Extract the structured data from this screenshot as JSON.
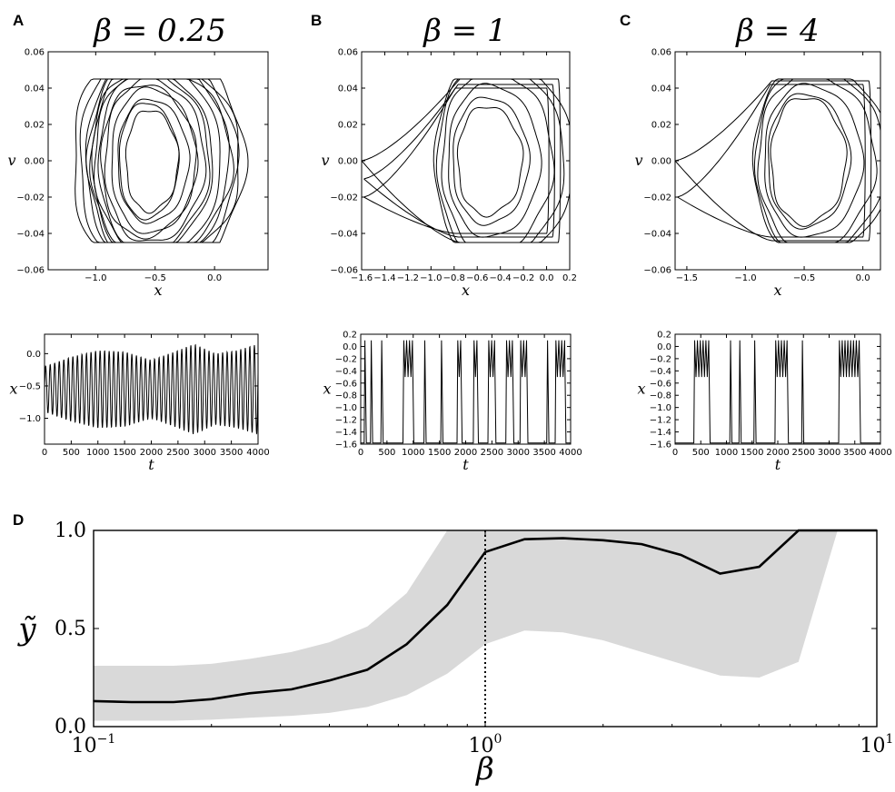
{
  "chart_data": [
    {
      "id": "A-phase",
      "panel": "A",
      "type": "line",
      "title": "β = 0.25",
      "xlabel": "x",
      "ylabel": "v",
      "xlim": [
        -1.4,
        0.45
      ],
      "ylim": [
        -0.06,
        0.06
      ],
      "xticks": [
        -1.0,
        -0.5,
        0.0
      ],
      "xtick_labels": [
        "−1.0",
        "−0.5",
        "0.0"
      ],
      "yticks": [
        -0.06,
        -0.04,
        -0.02,
        0.0,
        0.02,
        0.04,
        0.06
      ],
      "ytick_labels": [
        "−0.06",
        "−0.04",
        "−0.02",
        "0.00",
        "0.02",
        "0.04",
        "0.06"
      ],
      "v_clip": 0.045,
      "orbits": [
        {
          "cx": -0.55,
          "rx": 0.22,
          "ry": 0.028
        },
        {
          "cx": -0.55,
          "rx": 0.3,
          "ry": 0.034
        },
        {
          "cx": -0.55,
          "rx": 0.36,
          "ry": 0.04
        },
        {
          "cx": -0.55,
          "rx": 0.42,
          "ry": 0.045
        },
        {
          "cx": -0.55,
          "rx": 0.48,
          "ry": 0.05
        },
        {
          "cx": -0.55,
          "rx": 0.54,
          "ry": 0.056
        },
        {
          "cx": -0.55,
          "rx": 0.6,
          "ry": 0.06
        },
        {
          "cx": -0.55,
          "rx": 0.66,
          "ry": 0.064
        },
        {
          "cx": -0.55,
          "rx": 0.72,
          "ry": 0.068
        },
        {
          "cx": -0.5,
          "rx": 0.58,
          "ry": 0.052
        },
        {
          "cx": -0.6,
          "rx": 0.5,
          "ry": 0.05
        },
        {
          "cx": -0.5,
          "rx": 0.64,
          "ry": 0.058
        },
        {
          "cx": -0.6,
          "rx": 0.4,
          "ry": 0.042
        },
        {
          "cx": -0.58,
          "rx": 0.25,
          "ry": 0.032
        }
      ]
    },
    {
      "id": "B-phase",
      "panel": "B",
      "type": "line",
      "title": "β = 1",
      "xlabel": "x",
      "ylabel": "v",
      "xlim": [
        -1.6,
        0.2
      ],
      "ylim": [
        -0.06,
        0.06
      ],
      "xticks": [
        -1.6,
        -1.4,
        -1.2,
        -1.0,
        -0.8,
        -0.6,
        -0.4,
        -0.2,
        0.0,
        0.2
      ],
      "xtick_labels": [
        "−1.6",
        "−1.4",
        "−1.2",
        "−1.0",
        "−0.8",
        "−0.6",
        "−0.4",
        "−0.2",
        "0.0",
        "0.2"
      ],
      "yticks": [
        -0.06,
        -0.04,
        -0.02,
        0.0,
        0.02,
        0.04,
        0.06
      ],
      "ytick_labels": [
        "−0.06",
        "−0.04",
        "−0.02",
        "0.00",
        "0.02",
        "0.04",
        "0.06"
      ],
      "v_clip": 0.045,
      "orbits": [
        {
          "cx": -0.52,
          "rx": 0.28,
          "ry": 0.03
        },
        {
          "cx": -0.52,
          "rx": 0.33,
          "ry": 0.035
        },
        {
          "cx": -0.5,
          "rx": 0.4,
          "ry": 0.042
        },
        {
          "cx": -0.48,
          "rx": 0.48,
          "ry": 0.05
        },
        {
          "cx": -0.46,
          "rx": 0.55,
          "ry": 0.055
        },
        {
          "cx": -0.44,
          "rx": 0.6,
          "ry": 0.058
        }
      ],
      "excursions": [
        {
          "left": -1.6,
          "right": 0.1,
          "top": 0.045,
          "bottom": -0.045,
          "left_v": 0.0
        },
        {
          "left": -1.58,
          "right": 0.05,
          "top": 0.042,
          "bottom": -0.042,
          "left_v": -0.01
        },
        {
          "left": -1.58,
          "right": 0.0,
          "top": 0.04,
          "bottom": -0.04,
          "left_v": -0.02
        }
      ]
    },
    {
      "id": "C-phase",
      "panel": "C",
      "type": "line",
      "title": "β = 4",
      "xlabel": "x",
      "ylabel": "v",
      "xlim": [
        -1.6,
        0.15
      ],
      "ylim": [
        -0.06,
        0.06
      ],
      "xticks": [
        -1.5,
        -1.0,
        -0.5,
        0.0
      ],
      "xtick_labels": [
        "−1.5",
        "−1.0",
        "−0.5",
        "0.0"
      ],
      "yticks": [
        -0.06,
        -0.04,
        -0.02,
        0.0,
        0.02,
        0.04,
        0.06
      ],
      "ytick_labels": [
        "−0.06",
        "−0.04",
        "−0.02",
        "0.00",
        "0.02",
        "0.04",
        "0.06"
      ],
      "v_clip": 0.045,
      "orbits": [
        {
          "cx": -0.5,
          "rx": 0.32,
          "ry": 0.035
        },
        {
          "cx": -0.5,
          "rx": 0.35,
          "ry": 0.037
        },
        {
          "cx": -0.47,
          "rx": 0.42,
          "ry": 0.042
        },
        {
          "cx": -0.45,
          "rx": 0.5,
          "ry": 0.048
        },
        {
          "cx": -0.43,
          "rx": 0.55,
          "ry": 0.052
        },
        {
          "cx": -0.42,
          "rx": 0.58,
          "ry": 0.054
        }
      ],
      "excursions": [
        {
          "left": -1.6,
          "right": 0.05,
          "top": 0.044,
          "bottom": -0.044,
          "left_v": 0.0
        },
        {
          "left": -1.58,
          "right": 0.0,
          "top": 0.042,
          "bottom": -0.042,
          "left_v": -0.02
        }
      ]
    },
    {
      "id": "A-time",
      "panel": "A",
      "type": "line",
      "xlabel": "t",
      "ylabel": "x",
      "xlim": [
        0,
        4000
      ],
      "ylim": [
        -1.4,
        0.3
      ],
      "xticks": [
        0,
        500,
        1000,
        1500,
        2000,
        2500,
        3000,
        3500,
        4000
      ],
      "xtick_labels": [
        "0",
        "500",
        "1000",
        "1500",
        "2000",
        "2500",
        "3000",
        "3500",
        "4000"
      ],
      "yticks": [
        -1.0,
        -0.5,
        0.0
      ],
      "ytick_labels": [
        "−1.0",
        "−0.5",
        "0.0"
      ],
      "period": 85,
      "center": -0.55,
      "amplitude_envelope": {
        "t": [
          0,
          500,
          1000,
          1500,
          2000,
          2500,
          2800,
          3200,
          3600,
          4000
        ],
        "amp": [
          0.35,
          0.5,
          0.6,
          0.58,
          0.45,
          0.6,
          0.7,
          0.55,
          0.6,
          0.7
        ]
      }
    },
    {
      "id": "B-time",
      "panel": "B",
      "type": "line",
      "xlabel": "t",
      "ylabel": "x",
      "xlim": [
        0,
        4000
      ],
      "ylim": [
        -1.6,
        0.2
      ],
      "xticks": [
        0,
        500,
        1000,
        1500,
        2000,
        2500,
        3000,
        3500,
        4000
      ],
      "xtick_labels": [
        "0",
        "500",
        "1000",
        "1500",
        "2000",
        "2500",
        "3000",
        "3500",
        "4000"
      ],
      "yticks": [
        -1.6,
        -1.4,
        -1.2,
        -1.0,
        -0.8,
        -0.6,
        -0.4,
        -0.2,
        0.0,
        0.2
      ],
      "ytick_labels": [
        "−1.6",
        "−1.4",
        "−1.2",
        "−1.0",
        "−0.8",
        "−0.6",
        "−0.4",
        "−0.2",
        "0.0",
        "0.2"
      ],
      "spikes": [
        [
          80,
          1
        ],
        [
          200,
          1
        ],
        [
          400,
          1
        ],
        [
          820,
          4
        ],
        [
          1220,
          1
        ],
        [
          1540,
          1
        ],
        [
          1850,
          2
        ],
        [
          2160,
          2
        ],
        [
          2440,
          3
        ],
        [
          2780,
          3
        ],
        [
          3050,
          3
        ],
        [
          3560,
          1
        ],
        [
          3720,
          4
        ]
      ]
    },
    {
      "id": "C-time",
      "panel": "C",
      "type": "line",
      "xlabel": "t",
      "ylabel": "x",
      "xlim": [
        0,
        4000
      ],
      "ylim": [
        -1.6,
        0.2
      ],
      "xticks": [
        0,
        500,
        1000,
        1500,
        2000,
        2500,
        3000,
        3500,
        4000
      ],
      "xtick_labels": [
        "0",
        "500",
        "1000",
        "1500",
        "2000",
        "2500",
        "3000",
        "3500",
        "4000"
      ],
      "yticks": [
        -1.6,
        -1.4,
        -1.2,
        -1.0,
        -0.8,
        -0.6,
        -0.4,
        -0.2,
        0.0,
        0.2
      ],
      "ytick_labels": [
        "−1.6",
        "−1.4",
        "−1.2",
        "−1.0",
        "−0.8",
        "−0.6",
        "−0.4",
        "−0.2",
        "0.0",
        "0.2"
      ],
      "spikes": [
        [
          380,
          6
        ],
        [
          1080,
          1
        ],
        [
          1260,
          1
        ],
        [
          1550,
          1
        ],
        [
          1960,
          5
        ],
        [
          2480,
          1
        ],
        [
          3200,
          8
        ]
      ]
    },
    {
      "id": "D",
      "panel": "D",
      "type": "line",
      "xlabel": "β",
      "ylabel": "ỹ",
      "xscale": "log",
      "xlim": [
        0.1,
        10
      ],
      "ylim": [
        0.0,
        1.0
      ],
      "xticks": [
        0.1,
        1,
        10
      ],
      "xtick_labels": [
        "10",
        "10",
        "10"
      ],
      "xtick_exponents": [
        "−1",
        "0",
        "1"
      ],
      "yticks": [
        0.0,
        0.5,
        1.0
      ],
      "ytick_labels": [
        "0.0",
        "0.5",
        "1.0"
      ],
      "vline_x": 1,
      "series": [
        {
          "beta": [
            0.1,
            0.125,
            0.16,
            0.2,
            0.25,
            0.32,
            0.4,
            0.5,
            0.63,
            0.8,
            1.0,
            1.26,
            1.58,
            2.0,
            2.51,
            3.16,
            3.98,
            5.01,
            6.31,
            7.94,
            10.0
          ],
          "y": [
            0.13,
            0.125,
            0.125,
            0.14,
            0.17,
            0.19,
            0.235,
            0.29,
            0.42,
            0.62,
            0.89,
            0.955,
            0.96,
            0.95,
            0.93,
            0.875,
            0.78,
            0.815,
            1.0,
            1.0,
            1.0
          ]
        }
      ],
      "band": {
        "beta": [
          0.1,
          0.125,
          0.16,
          0.2,
          0.25,
          0.32,
          0.4,
          0.5,
          0.63,
          0.8,
          1.0,
          1.26,
          1.58,
          2.0,
          2.51,
          3.16,
          3.98,
          5.01,
          6.31,
          7.94,
          10.0
        ],
        "lower": [
          0.03,
          0.03,
          0.03,
          0.035,
          0.045,
          0.055,
          0.07,
          0.1,
          0.16,
          0.27,
          0.42,
          0.49,
          0.48,
          0.44,
          0.38,
          0.32,
          0.26,
          0.25,
          0.33,
          1.0,
          1.0
        ],
        "upper": [
          0.31,
          0.31,
          0.31,
          0.32,
          0.345,
          0.38,
          0.43,
          0.51,
          0.68,
          1.0,
          1.0,
          1.0,
          1.0,
          1.0,
          1.0,
          1.0,
          1.0,
          1.0,
          1.0,
          1.0,
          1.0
        ]
      }
    }
  ],
  "panel_labels": {
    "A": "A",
    "B": "B",
    "C": "C",
    "D": "D"
  }
}
